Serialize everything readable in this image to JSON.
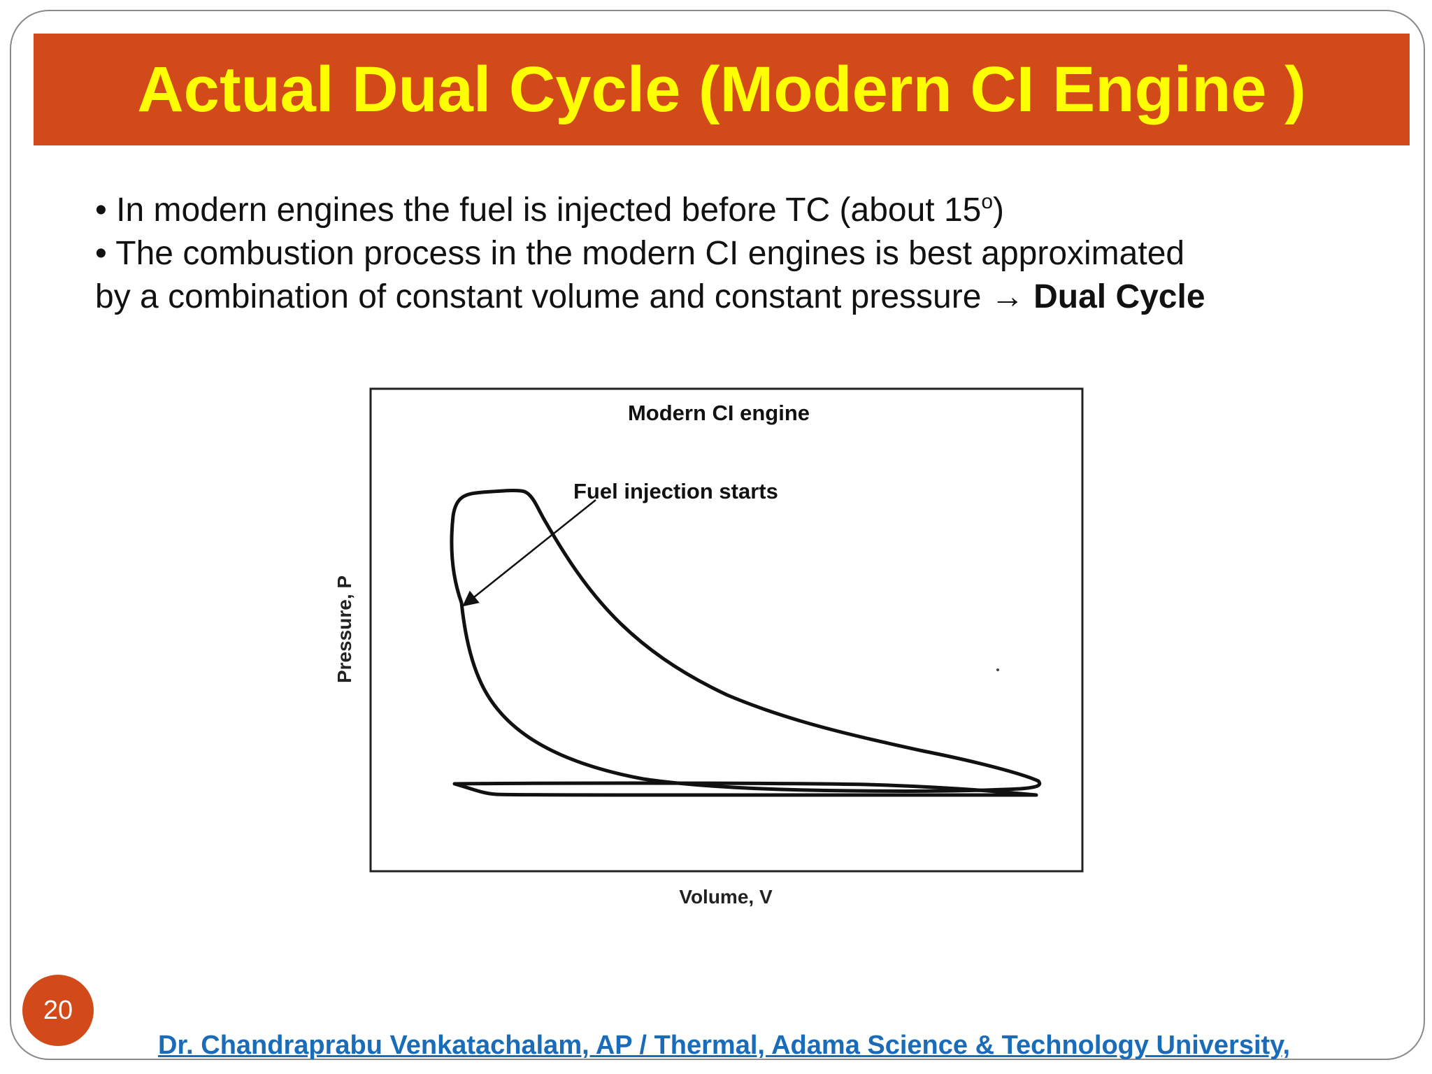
{
  "slide": {
    "title": "Actual Dual Cycle (Modern CI Engine )",
    "bullets": [
      {
        "text_before": "• In modern engines the fuel is injected before TC (about 15",
        "superscript": "o",
        "text_after": ")"
      },
      {
        "line1": "• The combustion process in the modern CI engines is best approximated",
        "line2": "by a combination of constant volume and constant pressure ",
        "arrow": "→",
        "emphasis": "Dual Cycle"
      }
    ],
    "page_number": "20",
    "footer": "Dr. Chandraprabu Venkatachalam, AP / Thermal, Adama Science & Technology University,"
  },
  "diagram": {
    "title": "Modern CI engine",
    "annotation": "Fuel injection starts",
    "x_label": "Volume, V",
    "y_label": "Pressure, P"
  },
  "colors": {
    "title_bar": "#d24a1a",
    "title_text": "#ffff00",
    "footer_text": "#1a6bb8",
    "badge": "#d24a1a"
  }
}
